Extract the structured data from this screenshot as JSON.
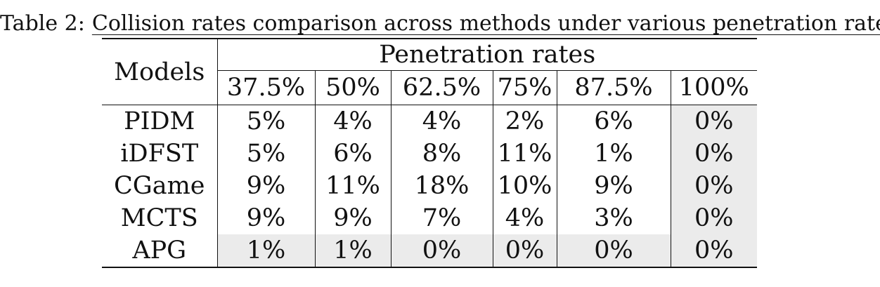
{
  "caption": {
    "prefix": "Table 2:",
    "text": "Collision rates comparison across methods under various penetration rates"
  },
  "table": {
    "row_header_label": "Models",
    "group_header": "Penetration rates",
    "columns": [
      "37.5%",
      "50%",
      "62.5%",
      "75%",
      "87.5%",
      "100%"
    ],
    "rows": [
      {
        "model": "PIDM",
        "values": [
          "5%",
          "4%",
          "4%",
          "2%",
          "6%",
          "0%"
        ]
      },
      {
        "model": "iDFST",
        "values": [
          "5%",
          "6%",
          "8%",
          "11%",
          "1%",
          "0%"
        ]
      },
      {
        "model": "CGame",
        "values": [
          "9%",
          "11%",
          "18%",
          "10%",
          "9%",
          "0%"
        ]
      },
      {
        "model": "MCTS",
        "values": [
          "9%",
          "9%",
          "7%",
          "4%",
          "3%",
          "0%"
        ]
      },
      {
        "model": "APG",
        "values": [
          "1%",
          "1%",
          "0%",
          "0%",
          "0%",
          "0%"
        ]
      }
    ],
    "highlight_color": "#ebebeb"
  }
}
